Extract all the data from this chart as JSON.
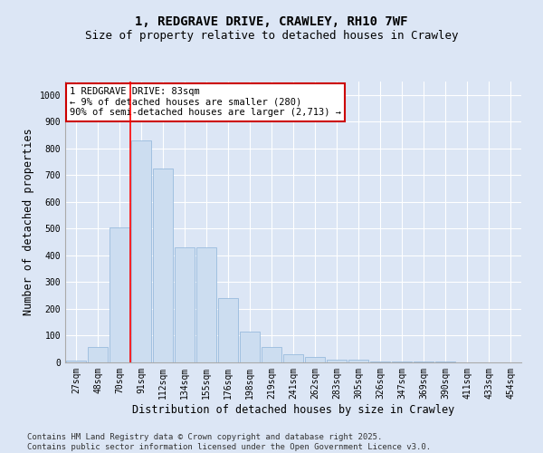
{
  "title_line1": "1, REDGRAVE DRIVE, CRAWLEY, RH10 7WF",
  "title_line2": "Size of property relative to detached houses in Crawley",
  "xlabel": "Distribution of detached houses by size in Crawley",
  "ylabel": "Number of detached properties",
  "categories": [
    "27sqm",
    "48sqm",
    "70sqm",
    "91sqm",
    "112sqm",
    "134sqm",
    "155sqm",
    "176sqm",
    "198sqm",
    "219sqm",
    "241sqm",
    "262sqm",
    "283sqm",
    "305sqm",
    "326sqm",
    "347sqm",
    "369sqm",
    "390sqm",
    "411sqm",
    "433sqm",
    "454sqm"
  ],
  "values": [
    8,
    58,
    505,
    830,
    725,
    430,
    430,
    240,
    115,
    57,
    30,
    20,
    10,
    10,
    5,
    3,
    2,
    5,
    1,
    1,
    1
  ],
  "bar_color": "#ccddf0",
  "bar_edge_color": "#99bbdd",
  "red_line_index": 3,
  "annotation_text": "1 REDGRAVE DRIVE: 83sqm\n← 9% of detached houses are smaller (280)\n90% of semi-detached houses are larger (2,713) →",
  "annotation_box_color": "white",
  "annotation_box_edge_color": "#cc0000",
  "ylim": [
    0,
    1050
  ],
  "yticks": [
    0,
    100,
    200,
    300,
    400,
    500,
    600,
    700,
    800,
    900,
    1000
  ],
  "bg_color": "#dce6f5",
  "plot_bg_color": "#dce6f5",
  "grid_color": "white",
  "footer_line1": "Contains HM Land Registry data © Crown copyright and database right 2025.",
  "footer_line2": "Contains public sector information licensed under the Open Government Licence v3.0.",
  "title_fontsize": 10,
  "subtitle_fontsize": 9,
  "axis_label_fontsize": 8.5,
  "tick_fontsize": 7,
  "annotation_fontsize": 7.5,
  "footer_fontsize": 6.5
}
